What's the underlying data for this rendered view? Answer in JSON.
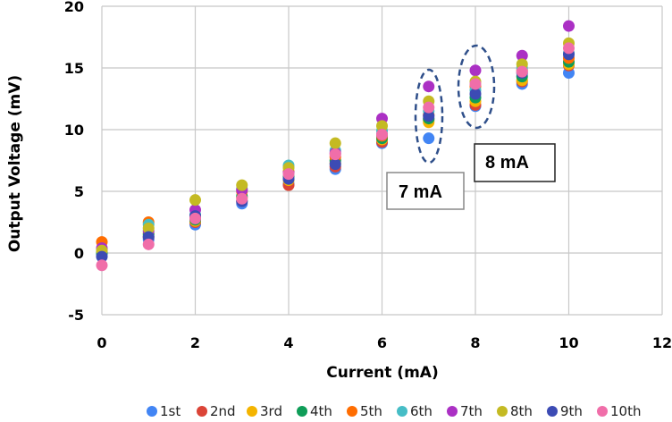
{
  "chart_data": {
    "type": "scatter",
    "title": "",
    "xlabel": "Current (mA)",
    "ylabel": "Output Voltage (mV)",
    "xlim": [
      0,
      12
    ],
    "ylim": [
      -5,
      20
    ],
    "xticks": [
      "0",
      "2",
      "4",
      "6",
      "8",
      "10",
      "12"
    ],
    "xtick_values": [
      0,
      2,
      4,
      6,
      8,
      10,
      12
    ],
    "yticks": [
      "-5",
      "0",
      "5",
      "10",
      "15",
      "20"
    ],
    "ytick_values": [
      -5,
      0,
      5,
      10,
      15,
      20
    ],
    "grid": true,
    "legend_position": "bottom",
    "x": [
      0,
      1,
      2,
      3,
      4,
      5,
      6,
      7,
      8,
      9,
      10
    ],
    "series": [
      {
        "name": "1st",
        "color": "#4285F4",
        "values": [
          -0.1,
          1.1,
          2.3,
          4.0,
          5.6,
          6.8,
          8.9,
          9.3,
          11.9,
          13.7,
          14.6
        ]
      },
      {
        "name": "2nd",
        "color": "#DB4437",
        "values": [
          0.1,
          1.3,
          2.5,
          4.2,
          5.5,
          7.0,
          9.0,
          10.8,
          12.0,
          13.9,
          15.2
        ]
      },
      {
        "name": "3rd",
        "color": "#F4B400",
        "values": [
          0.2,
          1.6,
          2.6,
          4.5,
          5.9,
          7.3,
          9.2,
          10.6,
          12.3,
          14.0,
          15.3
        ]
      },
      {
        "name": "4th",
        "color": "#0F9D58",
        "values": [
          0.0,
          1.5,
          2.7,
          4.6,
          6.2,
          7.5,
          9.3,
          10.9,
          12.6,
          14.3,
          15.5
        ]
      },
      {
        "name": "5th",
        "color": "#FF6D01",
        "values": [
          0.9,
          2.5,
          2.9,
          5.0,
          6.6,
          7.8,
          9.5,
          11.2,
          13.5,
          14.8,
          15.8
        ]
      },
      {
        "name": "6th",
        "color": "#46BDC6",
        "values": [
          0.3,
          2.3,
          3.1,
          5.2,
          7.1,
          8.3,
          9.9,
          11.5,
          13.2,
          15.0,
          16.2
        ]
      },
      {
        "name": "7th",
        "color": "#AB30C4",
        "values": [
          0.4,
          1.8,
          3.5,
          5.1,
          6.5,
          8.1,
          10.9,
          13.5,
          14.8,
          16.0,
          18.4
        ]
      },
      {
        "name": "8th",
        "color": "#C4BA23",
        "values": [
          0.2,
          2.0,
          4.3,
          5.5,
          6.9,
          8.9,
          10.3,
          12.3,
          13.9,
          15.3,
          17.0
        ]
      },
      {
        "name": "9th",
        "color": "#3C4BB4",
        "values": [
          -0.3,
          1.3,
          3.0,
          4.2,
          6.0,
          7.2,
          9.6,
          11.1,
          12.9,
          14.6,
          16.1
        ]
      },
      {
        "name": "10th",
        "color": "#F06EA9",
        "values": [
          -1.0,
          0.7,
          2.8,
          4.4,
          6.4,
          8.0,
          9.6,
          11.8,
          13.7,
          14.7,
          16.6
        ]
      }
    ],
    "annotations": [
      {
        "text": "7 mA",
        "target_x": 7
      },
      {
        "text": "8 mA",
        "target_x": 8
      }
    ]
  }
}
